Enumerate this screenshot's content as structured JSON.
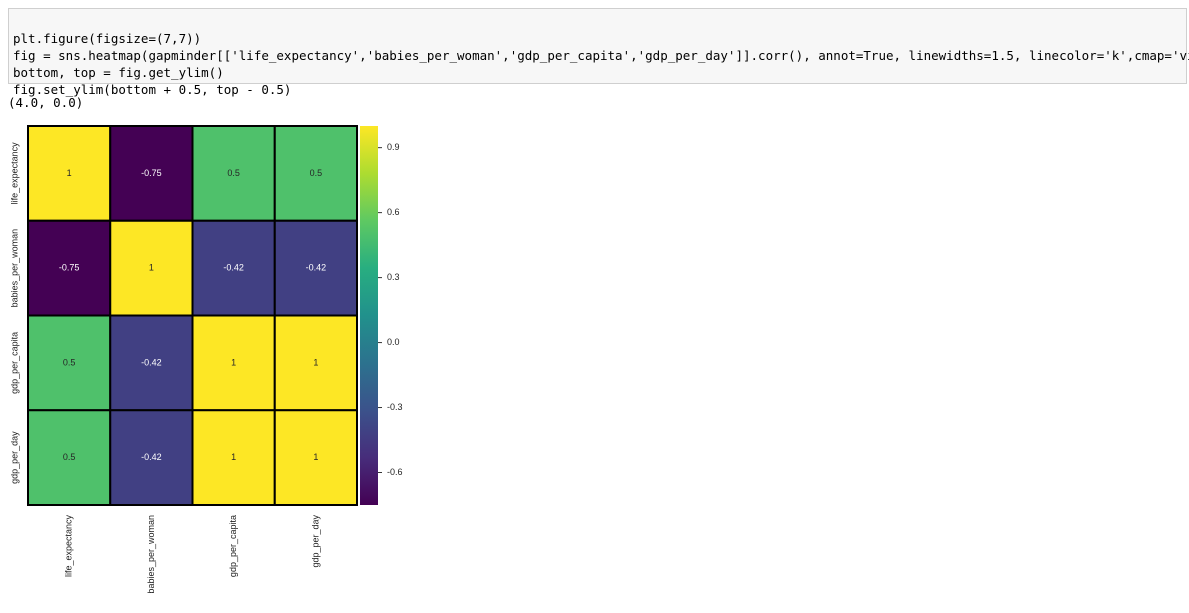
{
  "code_cell": {
    "lines": [
      "plt.figure(figsize=(7,7))",
      "fig = sns.heatmap(gapminder[['life_expectancy','babies_per_woman','gdp_per_capita','gdp_per_day']].corr(), annot=True, linewidths=1.5, linecolor='k',cmap='viridis')",
      "bottom, top = fig.get_ylim()",
      "fig.set_ylim(bottom + 0.5, top - 0.5)"
    ]
  },
  "output_text": "(4.0, 0.0)",
  "chart_data": {
    "type": "heatmap",
    "x_categories": [
      "life_expectancy",
      "babies_per_woman",
      "gdp_per_capita",
      "gdp_per_day"
    ],
    "y_categories": [
      "life_expectancy",
      "babies_per_woman",
      "gdp_per_capita",
      "gdp_per_day"
    ],
    "values": [
      [
        1,
        -0.75,
        0.5,
        0.5
      ],
      [
        -0.75,
        1,
        -0.42,
        -0.42
      ],
      [
        0.5,
        -0.42,
        1,
        1
      ],
      [
        0.5,
        -0.42,
        1,
        1
      ]
    ],
    "value_labels": [
      [
        "1",
        "-0.75",
        "0.5",
        "0.5"
      ],
      [
        "-0.75",
        "1",
        "-0.42",
        "-0.42"
      ],
      [
        "0.5",
        "-0.42",
        "1",
        "1"
      ],
      [
        "0.5",
        "-0.42",
        "1",
        "1"
      ]
    ],
    "colormap": "viridis",
    "line_color": "#000000",
    "clim": [
      -0.75,
      1
    ],
    "cticks": [
      0.9,
      0.6,
      0.3,
      {
        "value": 0,
        "label": "0.0"
      },
      -0.3,
      -0.6
    ]
  }
}
